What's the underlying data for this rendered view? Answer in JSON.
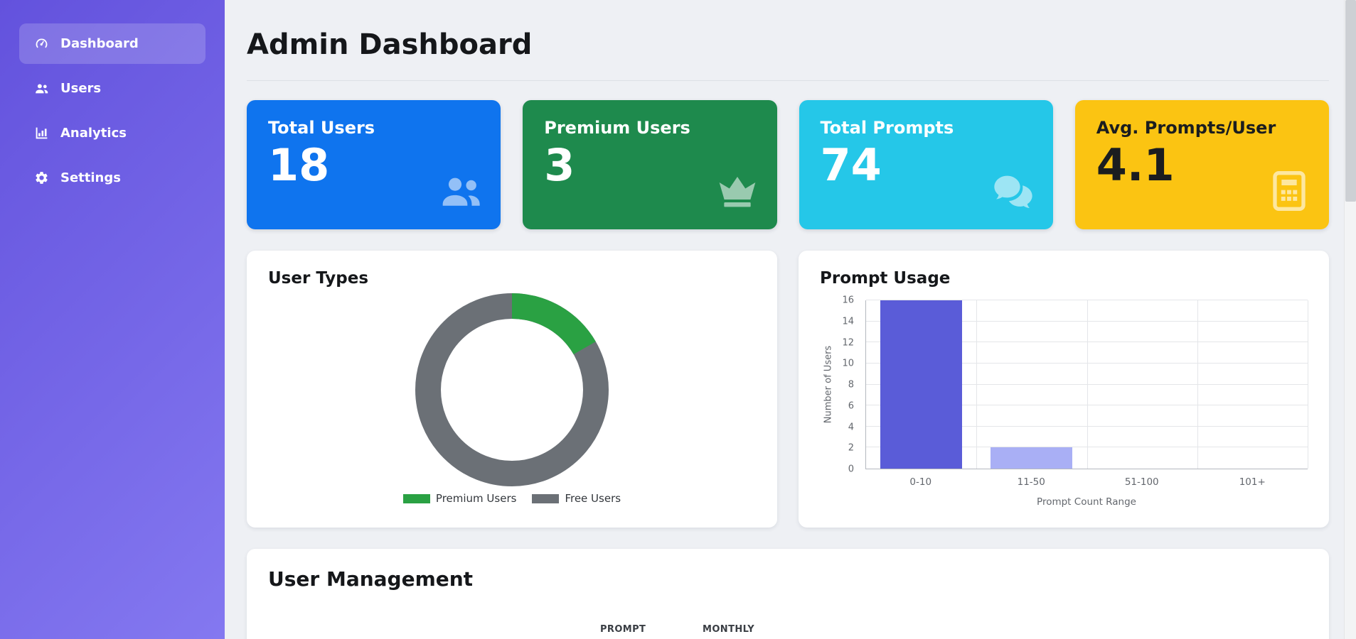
{
  "sidebar": {
    "gradient": [
      "#6352dd",
      "#8478f0"
    ],
    "items": [
      {
        "label": "Dashboard",
        "icon": "gauge-icon",
        "active": true
      },
      {
        "label": "Users",
        "icon": "users-icon",
        "active": false
      },
      {
        "label": "Analytics",
        "icon": "analytics-chart-icon",
        "active": false
      },
      {
        "label": "Settings",
        "icon": "gear-icon",
        "active": false
      }
    ]
  },
  "header": {
    "title": "Admin Dashboard"
  },
  "stats": [
    {
      "label": "Total Users",
      "value": "18",
      "color": "#0f74ee",
      "icon": "users-group-icon",
      "dark_text": false
    },
    {
      "label": "Premium Users",
      "value": "3",
      "color": "#1e8a4d",
      "icon": "crown-icon",
      "dark_text": false
    },
    {
      "label": "Total Prompts",
      "value": "74",
      "color": "#25c7e8",
      "icon": "chat-bubbles-icon",
      "dark_text": false
    },
    {
      "label": "Avg. Prompts/User",
      "value": "4.1",
      "color": "#fbc412",
      "icon": "calculator-icon",
      "dark_text": true
    }
  ],
  "chart_data": [
    {
      "type": "pie",
      "style": "donut",
      "title": "User Types",
      "labels": [
        "Premium Users",
        "Free Users"
      ],
      "values": [
        3,
        15
      ],
      "colors": [
        "#2aa143",
        "#6b7076"
      ],
      "legend_position": "bottom"
    },
    {
      "type": "bar",
      "title": "Prompt Usage",
      "categories": [
        "0-10",
        "11-50",
        "51-100",
        "101+"
      ],
      "values": [
        16,
        2,
        0,
        0
      ],
      "bar_colors": [
        "#5a5cd8",
        "#a9aff5",
        "#5a5cd8",
        "#5a5cd8"
      ],
      "xlabel": "Prompt Count Range",
      "ylabel": "Number of Users",
      "ylim": [
        0,
        16
      ],
      "ytick_step": 2,
      "grid": true,
      "legend_position": "none"
    }
  ],
  "user_management": {
    "title": "User Management",
    "visible_column_headers": [
      "PROMPT",
      "MONTHLY"
    ]
  }
}
